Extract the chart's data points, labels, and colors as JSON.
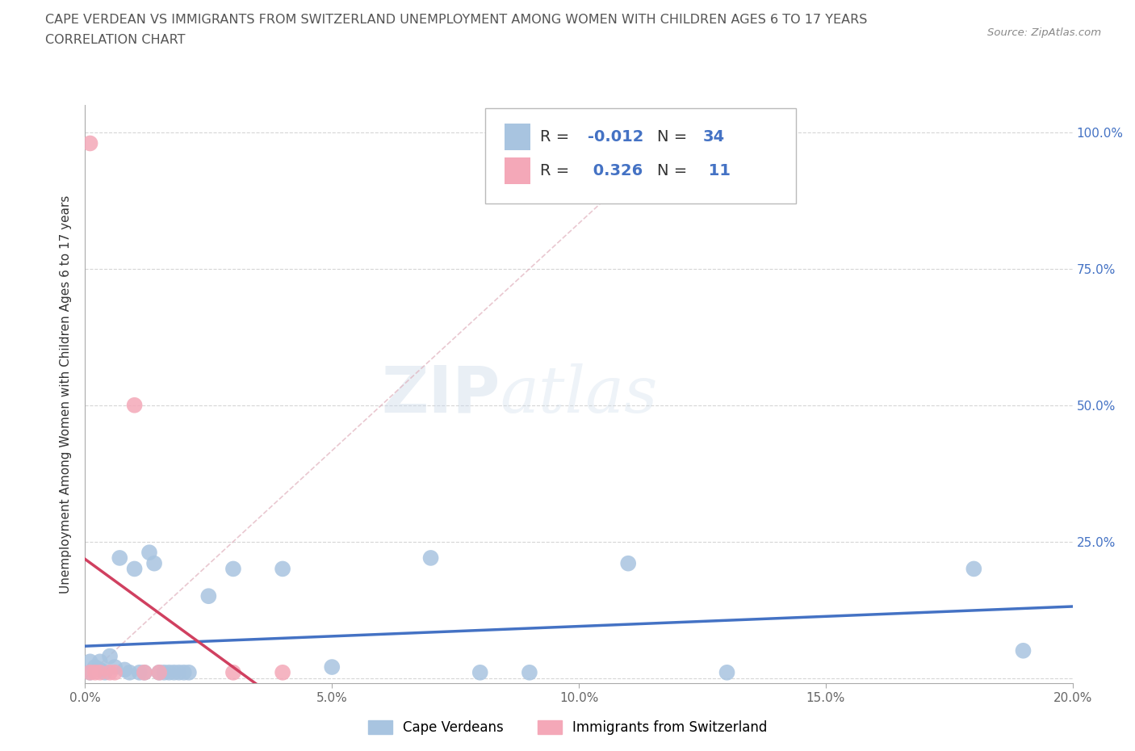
{
  "title_line1": "CAPE VERDEAN VS IMMIGRANTS FROM SWITZERLAND UNEMPLOYMENT AMONG WOMEN WITH CHILDREN AGES 6 TO 17 YEARS",
  "title_line2": "CORRELATION CHART",
  "source_text": "Source: ZipAtlas.com",
  "ylabel": "Unemployment Among Women with Children Ages 6 to 17 years",
  "xlim": [
    0.0,
    0.2
  ],
  "ylim": [
    0.0,
    1.05
  ],
  "xticks": [
    0.0,
    0.05,
    0.1,
    0.15,
    0.2
  ],
  "xticklabels": [
    "0.0%",
    "5.0%",
    "10.0%",
    "15.0%",
    "20.0%"
  ],
  "yticks_right": [
    0.0,
    0.25,
    0.5,
    0.75,
    1.0
  ],
  "yticklabels_right": [
    "",
    "25.0%",
    "50.0%",
    "75.0%",
    "100.0%"
  ],
  "watermark_zip": "ZIP",
  "watermark_atlas": "atlas",
  "blue_color": "#a8c4e0",
  "pink_color": "#f4a8b8",
  "blue_line_color": "#4472c4",
  "pink_line_color": "#d04060",
  "ref_line_color": "#e0b0bc",
  "R_blue": -0.012,
  "N_blue": 34,
  "R_pink": 0.326,
  "N_pink": 11,
  "legend_label_blue": "Cape Verdeans",
  "legend_label_pink": "Immigrants from Switzerland",
  "blue_scatter_x": [
    0.001,
    0.001,
    0.002,
    0.003,
    0.003,
    0.004,
    0.005,
    0.006,
    0.007,
    0.008,
    0.009,
    0.01,
    0.011,
    0.012,
    0.013,
    0.014,
    0.015,
    0.016,
    0.017,
    0.018,
    0.019,
    0.02,
    0.021,
    0.025,
    0.03,
    0.04,
    0.05,
    0.07,
    0.08,
    0.09,
    0.11,
    0.13,
    0.18,
    0.19
  ],
  "blue_scatter_y": [
    0.03,
    0.01,
    0.02,
    0.03,
    0.015,
    0.01,
    0.04,
    0.02,
    0.22,
    0.015,
    0.01,
    0.2,
    0.01,
    0.01,
    0.23,
    0.21,
    0.01,
    0.01,
    0.01,
    0.01,
    0.01,
    0.01,
    0.01,
    0.15,
    0.2,
    0.2,
    0.02,
    0.22,
    0.01,
    0.01,
    0.21,
    0.01,
    0.2,
    0.05
  ],
  "pink_scatter_x": [
    0.001,
    0.001,
    0.002,
    0.003,
    0.005,
    0.006,
    0.01,
    0.012,
    0.015,
    0.03,
    0.04
  ],
  "pink_scatter_y": [
    0.01,
    0.98,
    0.01,
    0.01,
    0.01,
    0.01,
    0.5,
    0.01,
    0.01,
    0.01,
    0.01
  ]
}
